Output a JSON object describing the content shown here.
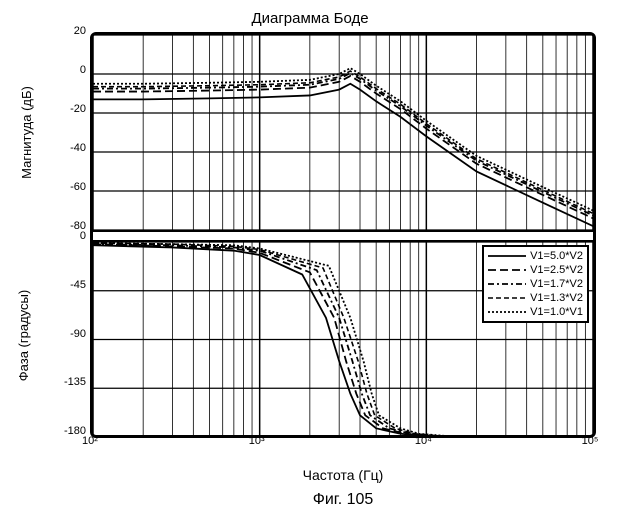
{
  "title": "Диаграмма Боде",
  "caption": "Фиг. 105",
  "xlabel": "Частота (Гц)",
  "xticks": [
    100,
    1000,
    10000,
    100000
  ],
  "xtick_labels": [
    "10²",
    "10³",
    "10⁴",
    "10⁵"
  ],
  "magnitude": {
    "ylabel": "Магнитуда (дБ)",
    "ylim": [
      -80,
      20
    ],
    "yticks": [
      -80,
      -60,
      -40,
      -20,
      0,
      20
    ]
  },
  "phase": {
    "ylabel": "Фаза (градусы)",
    "ylim": [
      -180,
      0
    ],
    "yticks": [
      -180,
      -135,
      -90,
      -45,
      0
    ]
  },
  "grid_color": "#000000",
  "series": [
    {
      "label": "V1=5.0*V2",
      "dash": "",
      "width": 1.8,
      "mag": [
        [
          100,
          -13
        ],
        [
          200,
          -13
        ],
        [
          500,
          -12.5
        ],
        [
          1000,
          -12
        ],
        [
          2000,
          -11
        ],
        [
          3000,
          -8
        ],
        [
          3500,
          -5
        ],
        [
          4000,
          -8
        ],
        [
          5000,
          -14
        ],
        [
          7000,
          -22
        ],
        [
          10000,
          -32
        ],
        [
          20000,
          -50
        ],
        [
          50000,
          -66
        ],
        [
          100000,
          -78
        ]
      ],
      "phase": [
        [
          100,
          -3
        ],
        [
          300,
          -5
        ],
        [
          700,
          -8
        ],
        [
          1000,
          -12
        ],
        [
          1800,
          -30
        ],
        [
          2500,
          -70
        ],
        [
          3000,
          -110
        ],
        [
          3500,
          -140
        ],
        [
          4000,
          -160
        ],
        [
          5000,
          -172
        ],
        [
          7000,
          -177
        ],
        [
          10000,
          -179
        ],
        [
          100000,
          -180
        ]
      ]
    },
    {
      "label": "V1=2.5*V2",
      "dash": "8,4",
      "width": 1.8,
      "mag": [
        [
          100,
          -9
        ],
        [
          200,
          -9
        ],
        [
          500,
          -8.5
        ],
        [
          1000,
          -8
        ],
        [
          2000,
          -7
        ],
        [
          3000,
          -4
        ],
        [
          3500,
          -1
        ],
        [
          4000,
          -4
        ],
        [
          5000,
          -10
        ],
        [
          7000,
          -18
        ],
        [
          10000,
          -28
        ],
        [
          20000,
          -46
        ],
        [
          50000,
          -62
        ],
        [
          100000,
          -74
        ]
      ],
      "phase": [
        [
          100,
          -2
        ],
        [
          300,
          -4
        ],
        [
          700,
          -6
        ],
        [
          1000,
          -10
        ],
        [
          2000,
          -28
        ],
        [
          2800,
          -70
        ],
        [
          3300,
          -110
        ],
        [
          3800,
          -140
        ],
        [
          4300,
          -160
        ],
        [
          5500,
          -172
        ],
        [
          7500,
          -177
        ],
        [
          10000,
          -179
        ],
        [
          100000,
          -180
        ]
      ]
    },
    {
      "label": "V1=1.7*V2",
      "dash": "6,3,2,3",
      "width": 1.8,
      "mag": [
        [
          100,
          -7.5
        ],
        [
          200,
          -7.5
        ],
        [
          500,
          -7
        ],
        [
          1000,
          -6.5
        ],
        [
          2000,
          -5.5
        ],
        [
          3000,
          -2.5
        ],
        [
          3500,
          0.5
        ],
        [
          4000,
          -2.5
        ],
        [
          5000,
          -8.5
        ],
        [
          7000,
          -16.5
        ],
        [
          10000,
          -26.5
        ],
        [
          20000,
          -44.5
        ],
        [
          50000,
          -60.5
        ],
        [
          100000,
          -72.5
        ]
      ],
      "phase": [
        [
          100,
          -2
        ],
        [
          300,
          -3
        ],
        [
          700,
          -5
        ],
        [
          1000,
          -8
        ],
        [
          2200,
          -26
        ],
        [
          3000,
          -70
        ],
        [
          3600,
          -110
        ],
        [
          4100,
          -140
        ],
        [
          4600,
          -160
        ],
        [
          6000,
          -172
        ],
        [
          8000,
          -177
        ],
        [
          11000,
          -179
        ],
        [
          100000,
          -180
        ]
      ]
    },
    {
      "label": "V1=1.3*V2",
      "dash": "5,3",
      "width": 1.6,
      "mag": [
        [
          100,
          -6.5
        ],
        [
          200,
          -6.5
        ],
        [
          500,
          -6
        ],
        [
          1000,
          -5.5
        ],
        [
          2000,
          -4.5
        ],
        [
          3000,
          -1.5
        ],
        [
          3500,
          1.5
        ],
        [
          4000,
          -1.5
        ],
        [
          5000,
          -7.5
        ],
        [
          7000,
          -15.5
        ],
        [
          10000,
          -25.5
        ],
        [
          20000,
          -43.5
        ],
        [
          50000,
          -59.5
        ],
        [
          100000,
          -71.5
        ]
      ],
      "phase": [
        [
          100,
          -1
        ],
        [
          300,
          -2
        ],
        [
          700,
          -4
        ],
        [
          1000,
          -7
        ],
        [
          2400,
          -24
        ],
        [
          3200,
          -70
        ],
        [
          3900,
          -110
        ],
        [
          4400,
          -140
        ],
        [
          4900,
          -160
        ],
        [
          6500,
          -172
        ],
        [
          8500,
          -177
        ],
        [
          12000,
          -179
        ],
        [
          100000,
          -180
        ]
      ]
    },
    {
      "label": "V1=1.0*V1",
      "dash": "2,2",
      "width": 1.8,
      "mag": [
        [
          100,
          -5
        ],
        [
          200,
          -5
        ],
        [
          500,
          -4.5
        ],
        [
          1000,
          -4
        ],
        [
          2000,
          -3
        ],
        [
          3000,
          0
        ],
        [
          3500,
          3
        ],
        [
          4000,
          0
        ],
        [
          5000,
          -6
        ],
        [
          7000,
          -14
        ],
        [
          10000,
          -24
        ],
        [
          20000,
          -42
        ],
        [
          50000,
          -58
        ],
        [
          100000,
          -70
        ]
      ],
      "phase": [
        [
          100,
          -1
        ],
        [
          300,
          -2
        ],
        [
          700,
          -3
        ],
        [
          1000,
          -6
        ],
        [
          2600,
          -22
        ],
        [
          3500,
          -70
        ],
        [
          4200,
          -110
        ],
        [
          4700,
          -140
        ],
        [
          5200,
          -160
        ],
        [
          7000,
          -172
        ],
        [
          9000,
          -177
        ],
        [
          13000,
          -179
        ],
        [
          100000,
          -180
        ]
      ]
    }
  ]
}
